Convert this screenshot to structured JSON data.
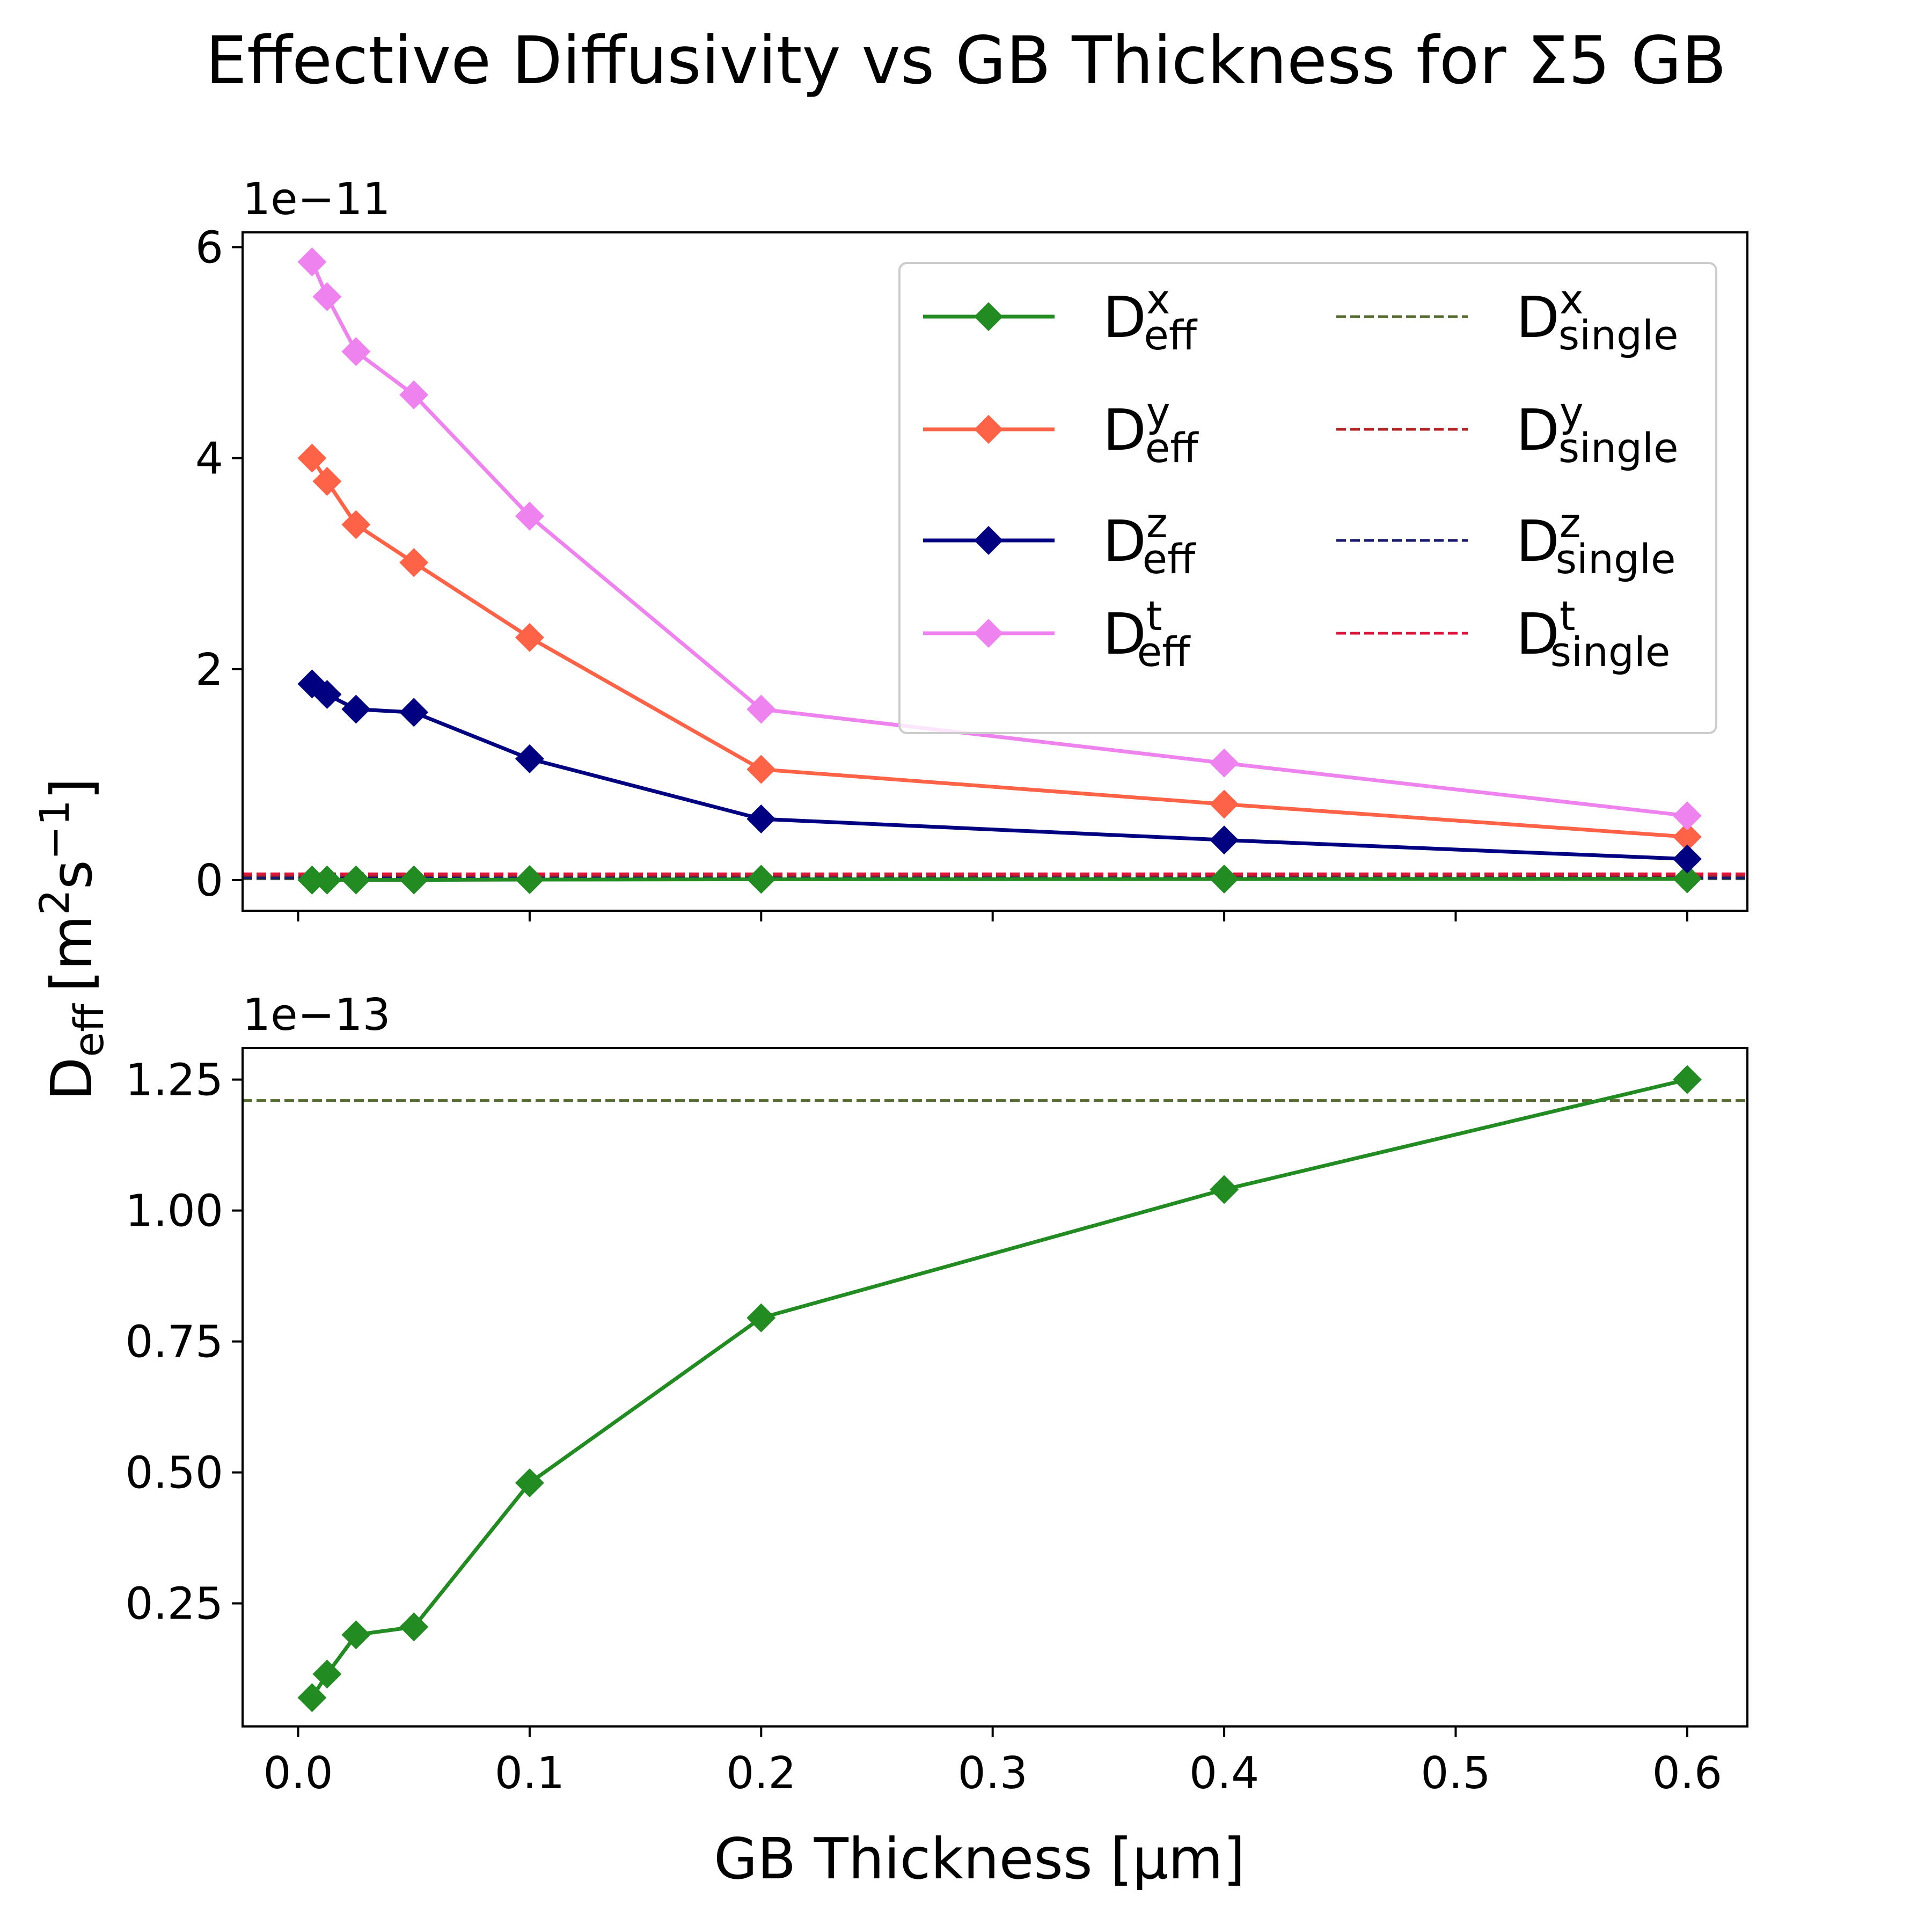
{
  "figure": {
    "title": "Effective Diffusivity vs GB Thickness for Σ5 GB",
    "xlabel": "GB Thickness [μm]",
    "ylabel_main": "D",
    "ylabel_sub": "eff",
    "ylabel_unit_a": "[m",
    "ylabel_unit_b": "2",
    "ylabel_unit_c": "s",
    "ylabel_unit_d": "−1",
    "ylabel_unit_e": "]"
  },
  "colors": {
    "dx": "#228b22",
    "dy": "#ff6347",
    "dz": "#000080",
    "dt": "#ee82ee",
    "sx": "#556b2f",
    "sy": "#b22222",
    "sz": "#191970",
    "st": "#dc143c"
  },
  "chart_data": [
    {
      "type": "line",
      "panel": "top",
      "offset_text": "1e−11",
      "x": [
        0.006,
        0.0125,
        0.025,
        0.05,
        0.1,
        0.2,
        0.4,
        0.6
      ],
      "xlim": [
        -0.024,
        0.626
      ],
      "ylim": [
        -0.29,
        6.14
      ],
      "yticks": [
        0,
        2,
        4,
        6
      ],
      "ytick_labels": [
        "0",
        "2",
        "4",
        "6"
      ],
      "xticks": [
        0.0,
        0.1,
        0.2,
        0.3,
        0.4,
        0.5,
        0.6
      ],
      "grid": false,
      "legend_position": "upper-right",
      "legend_columns": 2,
      "series": [
        {
          "name_main": "D",
          "name_sup": "x",
          "name_sub": "eff",
          "color": "#228b22",
          "style": "solid-diamond",
          "values": [
            0.0007,
            0.0011,
            0.0019,
            0.0021,
            0.0048,
            0.008,
            0.0104,
            0.0125
          ]
        },
        {
          "name_main": "D",
          "name_sup": "y",
          "name_sub": "eff",
          "color": "#ff6347",
          "style": "solid-diamond",
          "values": [
            4.0,
            3.78,
            3.37,
            3.01,
            2.3,
            1.05,
            0.72,
            0.41
          ]
        },
        {
          "name_main": "D",
          "name_sup": "z",
          "name_sub": "eff",
          "color": "#000080",
          "style": "solid-diamond",
          "values": [
            1.86,
            1.76,
            1.62,
            1.59,
            1.15,
            0.58,
            0.38,
            0.2
          ]
        },
        {
          "name_main": "D",
          "name_sup": "t",
          "name_sub": "eff",
          "color": "#ee82ee",
          "style": "solid-diamond",
          "values": [
            5.86,
            5.53,
            5.01,
            4.6,
            3.45,
            1.62,
            1.11,
            0.61
          ]
        }
      ],
      "reference_lines": [
        {
          "name_main": "D",
          "name_sup": "x",
          "name_sub": "single",
          "color": "#556b2f",
          "value": 0.0121
        },
        {
          "name_main": "D",
          "name_sup": "y",
          "name_sub": "single",
          "color": "#b22222",
          "value": 0.04
        },
        {
          "name_main": "D",
          "name_sup": "z",
          "name_sub": "single",
          "color": "#191970",
          "value": 0.02
        },
        {
          "name_main": "D",
          "name_sup": "t",
          "name_sub": "single",
          "color": "#dc143c",
          "value": 0.06
        }
      ]
    },
    {
      "type": "line",
      "panel": "bottom",
      "offset_text": "1e−13",
      "x": [
        0.006,
        0.0125,
        0.025,
        0.05,
        0.1,
        0.2,
        0.4,
        0.6
      ],
      "xlim": [
        -0.024,
        0.626
      ],
      "ylim": [
        0.015,
        1.31
      ],
      "yticks": [
        0.25,
        0.5,
        0.75,
        1.0,
        1.25
      ],
      "ytick_labels": [
        "0.25",
        "0.50",
        "0.75",
        "1.00",
        "1.25"
      ],
      "xticks": [
        0.0,
        0.1,
        0.2,
        0.3,
        0.4,
        0.5,
        0.6
      ],
      "xtick_labels": [
        "0.0",
        "0.1",
        "0.2",
        "0.3",
        "0.4",
        "0.5",
        "0.6"
      ],
      "grid": false,
      "series": [
        {
          "color": "#228b22",
          "style": "solid-diamond",
          "values": [
            0.07,
            0.115,
            0.19,
            0.205,
            0.48,
            0.795,
            1.04,
            1.25
          ]
        }
      ],
      "reference_lines": [
        {
          "color": "#556b2f",
          "value": 1.21
        }
      ]
    }
  ]
}
